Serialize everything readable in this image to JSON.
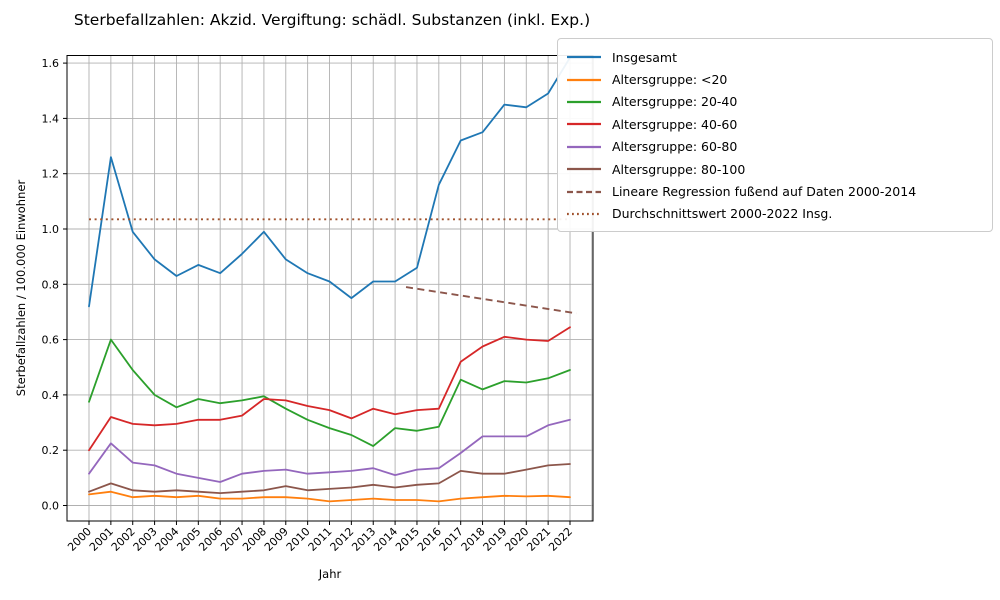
{
  "title": "Sterbefallzahlen: Akzid. Vergiftung: schädl. Substanzen (inkl. Exp.)",
  "xlabel": "Jahr",
  "ylabel": "Sterbefallzahlen / 100.000 Einwohner",
  "colors": {
    "background": "#ffffff",
    "grid": "#b0b0b0",
    "spine": "#000000",
    "text": "#000000"
  },
  "chart_data": {
    "type": "line",
    "x": [
      2000,
      2001,
      2002,
      2003,
      2004,
      2005,
      2006,
      2007,
      2008,
      2009,
      2010,
      2011,
      2012,
      2013,
      2014,
      2015,
      2016,
      2017,
      2018,
      2019,
      2020,
      2021,
      2022
    ],
    "series": [
      {
        "name": "Insgesamt",
        "color": "#1f77b4",
        "linestyle": "solid",
        "values": [
          0.72,
          1.26,
          0.99,
          0.89,
          0.83,
          0.87,
          0.84,
          0.91,
          0.99,
          0.89,
          0.84,
          0.81,
          0.75,
          0.81,
          0.81,
          0.86,
          1.16,
          1.32,
          1.35,
          1.45,
          1.44,
          1.49,
          1.62
        ]
      },
      {
        "name": "Altersgruppe: <20",
        "color": "#ff7f0e",
        "linestyle": "solid",
        "values": [
          0.04,
          0.05,
          0.03,
          0.035,
          0.03,
          0.035,
          0.025,
          0.025,
          0.03,
          0.03,
          0.025,
          0.015,
          0.02,
          0.025,
          0.02,
          0.02,
          0.015,
          0.025,
          0.03,
          0.035,
          0.033,
          0.035,
          0.03
        ]
      },
      {
        "name": "Altersgruppe: 20-40",
        "color": "#2ca02c",
        "linestyle": "solid",
        "values": [
          0.375,
          0.6,
          0.49,
          0.4,
          0.355,
          0.385,
          0.37,
          0.38,
          0.395,
          0.35,
          0.31,
          0.28,
          0.255,
          0.215,
          0.28,
          0.27,
          0.285,
          0.455,
          0.42,
          0.45,
          0.445,
          0.46,
          0.49
        ]
      },
      {
        "name": "Altersgruppe: 40-60",
        "color": "#d62728",
        "linestyle": "solid",
        "values": [
          0.2,
          0.32,
          0.295,
          0.29,
          0.295,
          0.31,
          0.31,
          0.325,
          0.385,
          0.38,
          0.36,
          0.345,
          0.315,
          0.35,
          0.33,
          0.345,
          0.35,
          0.52,
          0.575,
          0.61,
          0.6,
          0.595,
          0.645
        ]
      },
      {
        "name": "Altersgruppe: 60-80",
        "color": "#9467bd",
        "linestyle": "solid",
        "values": [
          0.115,
          0.225,
          0.155,
          0.145,
          0.115,
          0.1,
          0.085,
          0.115,
          0.125,
          0.13,
          0.115,
          0.12,
          0.125,
          0.135,
          0.11,
          0.13,
          0.135,
          0.19,
          0.25,
          0.25,
          0.25,
          0.29,
          0.31
        ]
      },
      {
        "name": "Altersgruppe: 80-100",
        "color": "#8c564b",
        "linestyle": "solid",
        "values": [
          0.05,
          0.08,
          0.055,
          0.05,
          0.055,
          0.05,
          0.045,
          0.05,
          0.055,
          0.07,
          0.055,
          0.06,
          0.065,
          0.075,
          0.065,
          0.075,
          0.08,
          0.125,
          0.115,
          0.115,
          0.13,
          0.145,
          0.15
        ]
      }
    ],
    "reference_lines": [
      {
        "name": "Lineare Regression fußend auf Daten 2000-2014",
        "color": "#8c564b",
        "linestyle": "dashed",
        "x_start": 2014.5,
        "y_start": 0.79,
        "x_end": 2022.3,
        "y_end": 0.695
      },
      {
        "name": "Durchschnittswert 2000-2022 Insg.",
        "color": "#a0522d",
        "linestyle": "dotted",
        "x_start": 2000,
        "y_start": 1.035,
        "x_end": 2022,
        "y_end": 1.035
      }
    ],
    "yticks": [
      0.0,
      0.2,
      0.4,
      0.6,
      0.8,
      1.0,
      1.2,
      1.4,
      1.6
    ],
    "xtick_labels": [
      "2000",
      "2001",
      "2002",
      "2003",
      "2004",
      "2005",
      "2006",
      "2007",
      "2008",
      "2009",
      "2010",
      "2011",
      "2012",
      "2013",
      "2014",
      "2015",
      "2016",
      "2017",
      "2018",
      "2019",
      "2020",
      "2021",
      "2022"
    ],
    "ylim": [
      -0.06,
      1.63
    ],
    "grid": true,
    "legend_position": "upper right"
  }
}
